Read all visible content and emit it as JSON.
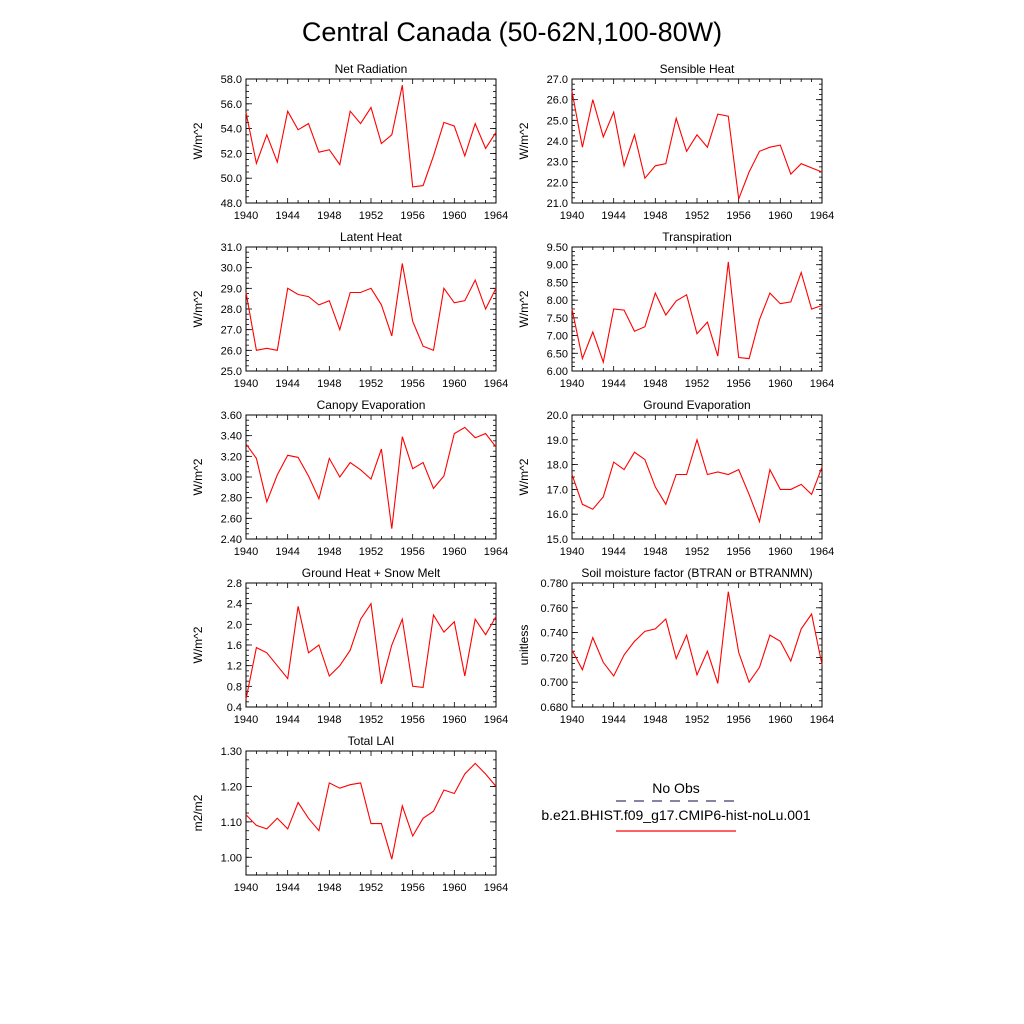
{
  "figure_title": "Central Canada (50-62N,100-80W)",
  "x_tick_labels": [
    "1940",
    "1944",
    "1948",
    "1952",
    "1956",
    "1960",
    "1964"
  ],
  "line_color": "#ff0000",
  "legend": {
    "obs_label": "No Obs",
    "obs_color": "#3a3a6e",
    "model_label": "b.e21.BHIST.f09_g17.CMIP6-hist-noLu.001",
    "model_color": "#ff0000"
  },
  "chart_data": [
    {
      "type": "line",
      "title": "Net Radiation",
      "ylabel": "W/m^2",
      "xlim": [
        1940,
        1964
      ],
      "ylim": [
        48.0,
        58.0
      ],
      "yticks": [
        48.0,
        50.0,
        52.0,
        54.0,
        56.0,
        58.0
      ],
      "ytick_labels": [
        "48.0",
        "50.0",
        "52.0",
        "54.0",
        "56.0",
        "58.0"
      ],
      "x": [
        1940,
        1941,
        1942,
        1943,
        1944,
        1945,
        1946,
        1947,
        1948,
        1949,
        1950,
        1951,
        1952,
        1953,
        1954,
        1955,
        1956,
        1957,
        1958,
        1959,
        1960,
        1961,
        1962,
        1963,
        1964
      ],
      "series": [
        {
          "values": [
            55.3,
            51.2,
            53.5,
            51.3,
            55.4,
            53.9,
            54.4,
            52.1,
            52.3,
            51.1,
            55.4,
            54.4,
            55.7,
            52.8,
            53.5,
            57.5,
            49.3,
            49.4,
            51.8,
            54.5,
            54.2,
            51.8,
            54.4,
            52.4,
            53.7
          ]
        }
      ]
    },
    {
      "type": "line",
      "title": "Sensible Heat",
      "ylabel": "W/m^2",
      "xlim": [
        1940,
        1964
      ],
      "ylim": [
        21.0,
        27.0
      ],
      "yticks": [
        21.0,
        22.0,
        23.0,
        24.0,
        25.0,
        26.0,
        27.0
      ],
      "ytick_labels": [
        "21.0",
        "22.0",
        "23.0",
        "24.0",
        "25.0",
        "26.0",
        "27.0"
      ],
      "x": [
        1940,
        1941,
        1942,
        1943,
        1944,
        1945,
        1946,
        1947,
        1948,
        1949,
        1950,
        1951,
        1952,
        1953,
        1954,
        1955,
        1956,
        1957,
        1958,
        1959,
        1960,
        1961,
        1962,
        1963,
        1964
      ],
      "series": [
        {
          "values": [
            26.4,
            23.7,
            26.0,
            24.2,
            25.4,
            22.8,
            24.3,
            22.2,
            22.8,
            22.9,
            25.1,
            23.5,
            24.3,
            23.7,
            25.3,
            25.2,
            21.2,
            22.5,
            23.5,
            23.7,
            23.8,
            22.4,
            22.9,
            22.7,
            22.5
          ]
        }
      ]
    },
    {
      "type": "line",
      "title": "Latent Heat",
      "ylabel": "W/m^2",
      "xlim": [
        1940,
        1964
      ],
      "ylim": [
        25.0,
        31.0
      ],
      "yticks": [
        25.0,
        26.0,
        27.0,
        28.0,
        29.0,
        30.0,
        31.0
      ],
      "ytick_labels": [
        "25.0",
        "26.0",
        "27.0",
        "28.0",
        "29.0",
        "30.0",
        "31.0"
      ],
      "x": [
        1940,
        1941,
        1942,
        1943,
        1944,
        1945,
        1946,
        1947,
        1948,
        1949,
        1950,
        1951,
        1952,
        1953,
        1954,
        1955,
        1956,
        1957,
        1958,
        1959,
        1960,
        1961,
        1962,
        1963,
        1964
      ],
      "series": [
        {
          "values": [
            28.8,
            26.0,
            26.1,
            26.0,
            29.0,
            28.7,
            28.6,
            28.2,
            28.4,
            27.0,
            28.8,
            28.8,
            29.0,
            28.2,
            26.7,
            30.2,
            27.4,
            26.2,
            26.0,
            29.0,
            28.3,
            28.4,
            29.4,
            28.0,
            29.0
          ]
        }
      ]
    },
    {
      "type": "line",
      "title": "Transpiration",
      "ylabel": "W/m^2",
      "xlim": [
        1940,
        1964
      ],
      "ylim": [
        6.0,
        9.5
      ],
      "yticks": [
        6.0,
        6.5,
        7.0,
        7.5,
        8.0,
        8.5,
        9.0,
        9.5
      ],
      "ytick_labels": [
        "6.00",
        "6.50",
        "7.00",
        "7.50",
        "8.00",
        "8.50",
        "9.00",
        "9.50"
      ],
      "x": [
        1940,
        1941,
        1942,
        1943,
        1944,
        1945,
        1946,
        1947,
        1948,
        1949,
        1950,
        1951,
        1952,
        1953,
        1954,
        1955,
        1956,
        1957,
        1958,
        1959,
        1960,
        1961,
        1962,
        1963,
        1964
      ],
      "series": [
        {
          "values": [
            7.75,
            6.35,
            7.1,
            6.25,
            7.75,
            7.72,
            7.12,
            7.25,
            8.2,
            7.58,
            7.98,
            8.15,
            7.05,
            7.38,
            6.42,
            9.08,
            6.38,
            6.35,
            7.45,
            8.2,
            7.9,
            7.95,
            8.78,
            7.75,
            7.85
          ]
        }
      ]
    },
    {
      "type": "line",
      "title": "Canopy Evaporation",
      "ylabel": "W/m^2",
      "xlim": [
        1940,
        1964
      ],
      "ylim": [
        2.4,
        3.6
      ],
      "yticks": [
        2.4,
        2.6,
        2.8,
        3.0,
        3.2,
        3.4,
        3.6
      ],
      "ytick_labels": [
        "2.40",
        "2.60",
        "2.80",
        "3.00",
        "3.20",
        "3.40",
        "3.60"
      ],
      "x": [
        1940,
        1941,
        1942,
        1943,
        1944,
        1945,
        1946,
        1947,
        1948,
        1949,
        1950,
        1951,
        1952,
        1953,
        1954,
        1955,
        1956,
        1957,
        1958,
        1959,
        1960,
        1961,
        1962,
        1963,
        1964
      ],
      "series": [
        {
          "values": [
            3.32,
            3.18,
            2.76,
            3.02,
            3.21,
            3.19,
            3.01,
            2.79,
            3.18,
            3.0,
            3.14,
            3.07,
            2.98,
            3.27,
            2.5,
            3.39,
            3.08,
            3.14,
            2.89,
            3.01,
            3.42,
            3.48,
            3.38,
            3.42,
            3.29
          ]
        }
      ]
    },
    {
      "type": "line",
      "title": "Ground Evaporation",
      "ylabel": "W/m^2",
      "xlim": [
        1940,
        1964
      ],
      "ylim": [
        15.0,
        20.0
      ],
      "yticks": [
        15.0,
        16.0,
        17.0,
        18.0,
        19.0,
        20.0
      ],
      "ytick_labels": [
        "15.0",
        "16.0",
        "17.0",
        "18.0",
        "19.0",
        "20.0"
      ],
      "x": [
        1940,
        1941,
        1942,
        1943,
        1944,
        1945,
        1946,
        1947,
        1948,
        1949,
        1950,
        1951,
        1952,
        1953,
        1954,
        1955,
        1956,
        1957,
        1958,
        1959,
        1960,
        1961,
        1962,
        1963,
        1964
      ],
      "series": [
        {
          "values": [
            17.6,
            16.4,
            16.2,
            16.7,
            18.1,
            17.8,
            18.5,
            18.2,
            17.1,
            16.4,
            17.6,
            17.6,
            19.0,
            17.6,
            17.7,
            17.6,
            17.8,
            16.8,
            15.7,
            17.8,
            17.0,
            17.0,
            17.2,
            16.8,
            17.9
          ]
        }
      ]
    },
    {
      "type": "line",
      "title": "Ground Heat + Snow Melt",
      "ylabel": "W/m^2",
      "xlim": [
        1940,
        1964
      ],
      "ylim": [
        0.4,
        2.8
      ],
      "yticks": [
        0.4,
        0.8,
        1.2,
        1.6,
        2.0,
        2.4,
        2.8
      ],
      "ytick_labels": [
        "0.4",
        "0.8",
        "1.2",
        "1.6",
        "2.0",
        "2.4",
        "2.8"
      ],
      "x": [
        1940,
        1941,
        1942,
        1943,
        1944,
        1945,
        1946,
        1947,
        1948,
        1949,
        1950,
        1951,
        1952,
        1953,
        1954,
        1955,
        1956,
        1957,
        1958,
        1959,
        1960,
        1961,
        1962,
        1963,
        1964
      ],
      "series": [
        {
          "values": [
            0.55,
            1.55,
            1.45,
            1.2,
            0.95,
            2.35,
            1.45,
            1.6,
            1.0,
            1.2,
            1.5,
            2.1,
            2.4,
            0.85,
            1.6,
            2.1,
            0.8,
            0.78,
            2.18,
            1.85,
            2.05,
            1.0,
            2.1,
            1.8,
            2.15
          ]
        }
      ]
    },
    {
      "type": "line",
      "title": "Soil moisture factor (BTRAN or BTRANMN)",
      "ylabel": "unitless",
      "xlim": [
        1940,
        1964
      ],
      "ylim": [
        0.68,
        0.78
      ],
      "yticks": [
        0.68,
        0.7,
        0.72,
        0.74,
        0.76,
        0.78
      ],
      "ytick_labels": [
        "0.680",
        "0.700",
        "0.720",
        "0.740",
        "0.760",
        "0.780"
      ],
      "x": [
        1940,
        1941,
        1942,
        1943,
        1944,
        1945,
        1946,
        1947,
        1948,
        1949,
        1950,
        1951,
        1952,
        1953,
        1954,
        1955,
        1956,
        1957,
        1958,
        1959,
        1960,
        1961,
        1962,
        1963,
        1964
      ],
      "series": [
        {
          "values": [
            0.726,
            0.71,
            0.736,
            0.716,
            0.705,
            0.722,
            0.733,
            0.741,
            0.743,
            0.751,
            0.719,
            0.738,
            0.706,
            0.725,
            0.699,
            0.773,
            0.724,
            0.7,
            0.712,
            0.738,
            0.733,
            0.717,
            0.743,
            0.755,
            0.714
          ]
        }
      ]
    },
    {
      "type": "line",
      "title": "Total LAI",
      "ylabel": "m2/m2",
      "xlim": [
        1940,
        1964
      ],
      "ylim": [
        0.95,
        1.3
      ],
      "yticks": [
        1.0,
        1.1,
        1.2,
        1.3
      ],
      "ytick_labels": [
        "1.00",
        "1.10",
        "1.20",
        "1.30"
      ],
      "x": [
        1940,
        1941,
        1942,
        1943,
        1944,
        1945,
        1946,
        1947,
        1948,
        1949,
        1950,
        1951,
        1952,
        1953,
        1954,
        1955,
        1956,
        1957,
        1958,
        1959,
        1960,
        1961,
        1962,
        1963,
        1964
      ],
      "series": [
        {
          "values": [
            1.12,
            1.09,
            1.08,
            1.11,
            1.08,
            1.155,
            1.11,
            1.075,
            1.21,
            1.195,
            1.205,
            1.21,
            1.095,
            1.095,
            0.995,
            1.145,
            1.06,
            1.11,
            1.13,
            1.19,
            1.18,
            1.235,
            1.265,
            1.235,
            1.2
          ]
        }
      ]
    }
  ]
}
